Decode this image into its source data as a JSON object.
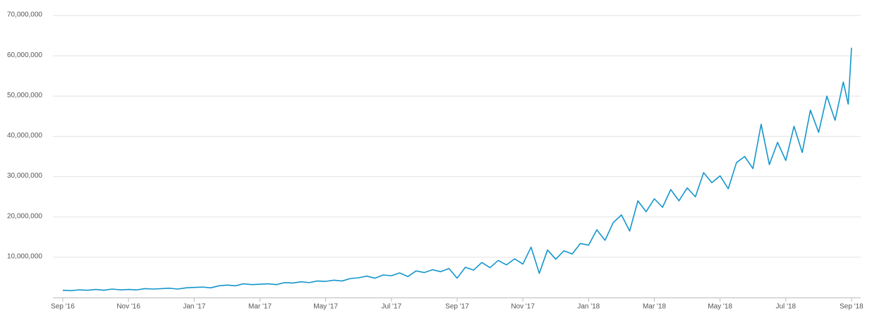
{
  "chart_data": {
    "type": "line",
    "x": [
      0,
      0.25,
      0.5,
      0.75,
      1,
      1.25,
      1.5,
      1.75,
      2,
      2.25,
      2.5,
      2.75,
      3,
      3.25,
      3.5,
      3.75,
      4,
      4.25,
      4.5,
      4.75,
      5,
      5.25,
      5.5,
      5.75,
      6,
      6.25,
      6.5,
      6.75,
      7,
      7.25,
      7.5,
      7.75,
      8,
      8.25,
      8.5,
      8.75,
      9,
      9.25,
      9.5,
      9.75,
      10,
      10.25,
      10.5,
      10.75,
      11,
      11.25,
      11.5,
      11.75,
      12,
      12.25,
      12.5,
      12.75,
      13,
      13.25,
      13.5,
      13.75,
      14,
      14.25,
      14.5,
      14.75,
      15,
      15.25,
      15.5,
      15.75,
      16,
      16.25,
      16.5,
      16.75,
      17,
      17.25,
      17.5,
      17.75,
      18,
      18.25,
      18.5,
      18.75,
      19,
      19.25,
      19.5,
      19.75,
      20,
      20.25,
      20.5,
      20.75,
      21,
      21.25,
      21.5,
      21.75,
      22,
      22.25,
      22.5,
      22.75,
      23,
      23.25,
      23.5,
      23.75,
      23.9,
      24
    ],
    "series": [
      {
        "color": "#1496cc",
        "values": [
          1800000,
          1700000,
          1900000,
          1800000,
          2000000,
          1800000,
          2100000,
          1900000,
          2000000,
          1900000,
          2200000,
          2100000,
          2200000,
          2300000,
          2100000,
          2400000,
          2500000,
          2600000,
          2400000,
          2900000,
          3100000,
          2900000,
          3400000,
          3200000,
          3300000,
          3400000,
          3200000,
          3700000,
          3600000,
          3900000,
          3700000,
          4100000,
          4000000,
          4300000,
          4100000,
          4700000,
          4900000,
          5300000,
          4800000,
          5600000,
          5400000,
          6100000,
          5200000,
          6600000,
          6200000,
          6900000,
          6400000,
          7200000,
          4800000,
          7500000,
          6800000,
          8700000,
          7400000,
          9200000,
          8100000,
          9600000,
          8300000,
          12500000,
          6000000,
          11800000,
          9500000,
          11600000,
          10800000,
          13400000,
          13000000,
          16800000,
          14200000,
          18600000,
          20500000,
          16500000,
          24000000,
          21300000,
          24500000,
          22400000,
          26800000,
          24000000,
          27200000,
          25000000,
          31000000,
          28500000,
          30200000,
          27000000,
          33500000,
          35000000,
          32000000,
          43000000,
          33000000,
          38500000,
          34000000,
          42500000,
          36000000,
          46500000,
          41000000,
          50000000,
          44000000,
          53500000,
          48000000,
          62000000
        ]
      }
    ],
    "xlim": [
      -0.3,
      24.28
    ],
    "xticks": [
      {
        "value": 0,
        "label": "Sep '16"
      },
      {
        "value": 2,
        "label": "Nov '16"
      },
      {
        "value": 4,
        "label": "Jan '17"
      },
      {
        "value": 6,
        "label": "Mar '17"
      },
      {
        "value": 8,
        "label": "May '17"
      },
      {
        "value": 10,
        "label": "Jul '17"
      },
      {
        "value": 12,
        "label": "Sep '17"
      },
      {
        "value": 14,
        "label": "Nov '17"
      },
      {
        "value": 16,
        "label": "Jan '18"
      },
      {
        "value": 18,
        "label": "Mar '18"
      },
      {
        "value": 20,
        "label": "May '18"
      },
      {
        "value": 22,
        "label": "Jul '18"
      },
      {
        "value": 24,
        "label": "Sep '18"
      }
    ],
    "ylim": [
      0,
      70000000
    ],
    "yticks": [
      {
        "value": 10000000,
        "label": "10,000,000"
      },
      {
        "value": 20000000,
        "label": "20,000,000"
      },
      {
        "value": 30000000,
        "label": "30,000,000"
      },
      {
        "value": 40000000,
        "label": "40,000,000"
      },
      {
        "value": 50000000,
        "label": "50,000,000"
      },
      {
        "value": 60000000,
        "label": "60,000,000"
      },
      {
        "value": 70000000,
        "label": "70,000,000"
      }
    ],
    "grid": true
  }
}
